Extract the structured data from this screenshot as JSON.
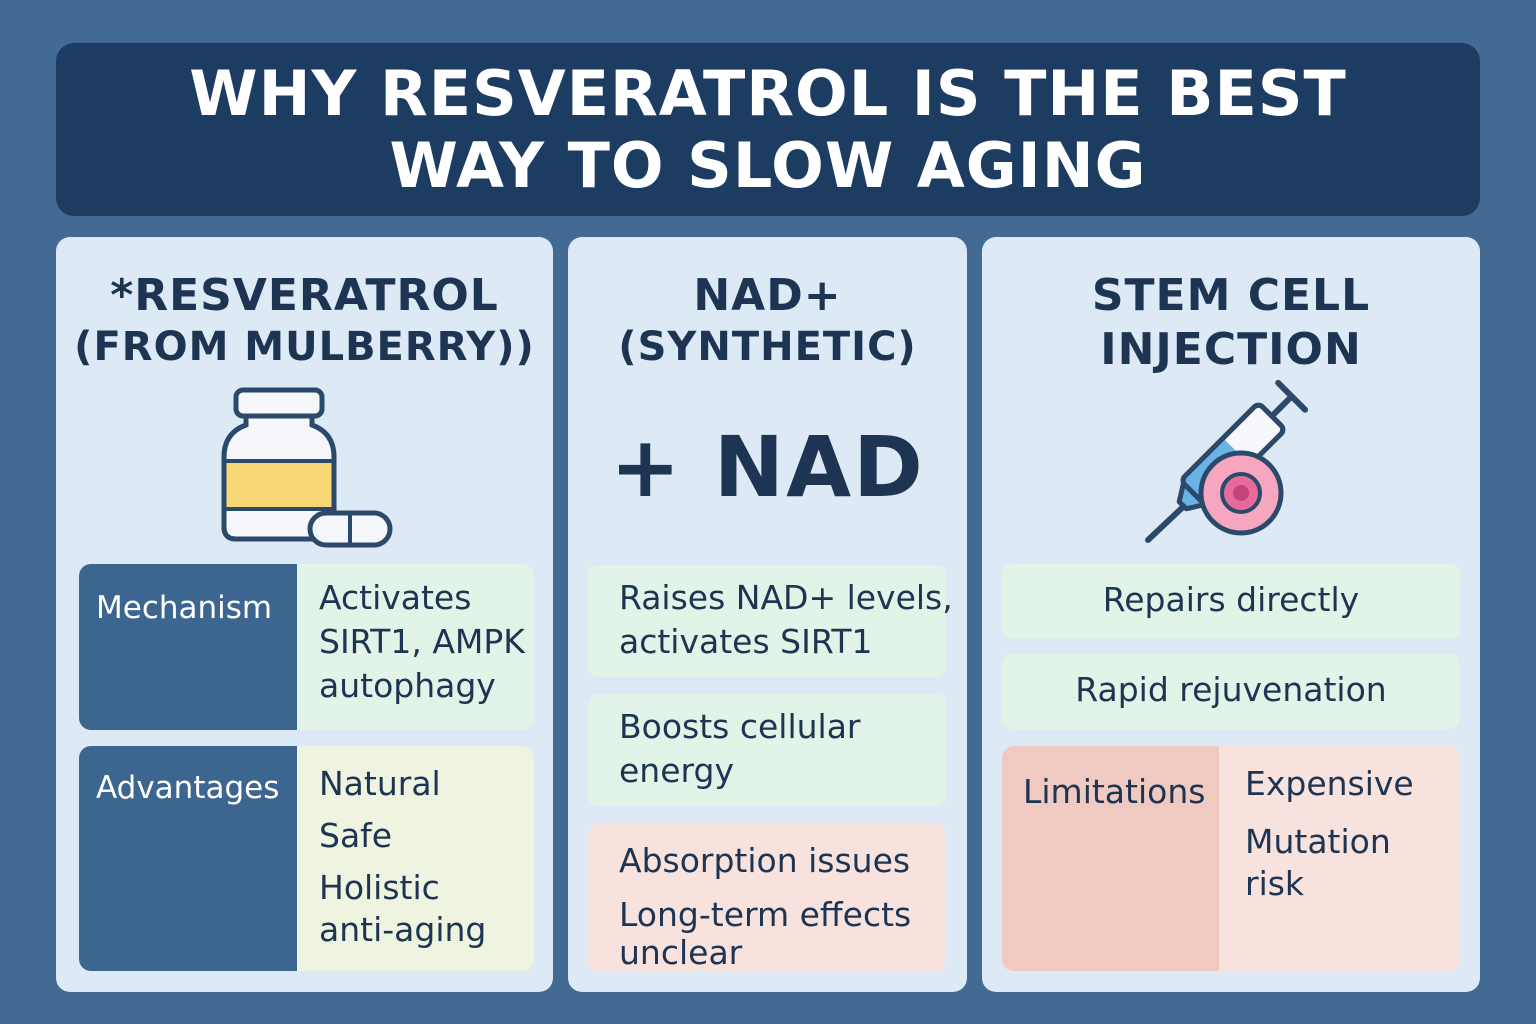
{
  "title": "WHY RESVERATROL IS THE BEST WAY TO SLOW AGING",
  "colors": {
    "background": "#426a92",
    "banner": "#1d3c61",
    "card": "#dde9f4",
    "label_block": "#3c6690",
    "positive": "#e2f3e7",
    "negative": "#f7e2dd",
    "advantage": "#eef4df"
  },
  "cards": [
    {
      "title_line1": "*RESVERATROL",
      "title_line2": "(FROM MULBERRY))",
      "icon": "supplement-bottle-icon",
      "mechanism_label": "Mechanism",
      "mechanism_lines": [
        "Activates",
        "SIRT1, AMPK",
        "autophagy"
      ],
      "advantages_label": "Advantages",
      "advantages": [
        "Natural",
        "Safe",
        "Holistic",
        "anti-aging"
      ]
    },
    {
      "title_line1": "NAD+",
      "title_line2": "(SYNTHETIC)",
      "icon": "plus-nad-icon",
      "icon_text": "+ NAD",
      "point1_lines": [
        "Raises NAD+ levels,",
        "activates SIRT1"
      ],
      "point2_lines": [
        "Boosts cellular",
        "energy"
      ],
      "issue1": "Absorption issues",
      "issue2_lines": [
        "Long-term effects",
        "unclear"
      ]
    },
    {
      "title_line1": "STEM CELL",
      "title_line2": "INJECTION",
      "icon": "syringe-cell-icon",
      "point1": "Repairs directly",
      "point2": "Rapid rejuvenation",
      "limitations_label": "Limitations",
      "limitations": [
        "Expensive",
        "Mutation",
        "risk"
      ]
    }
  ]
}
